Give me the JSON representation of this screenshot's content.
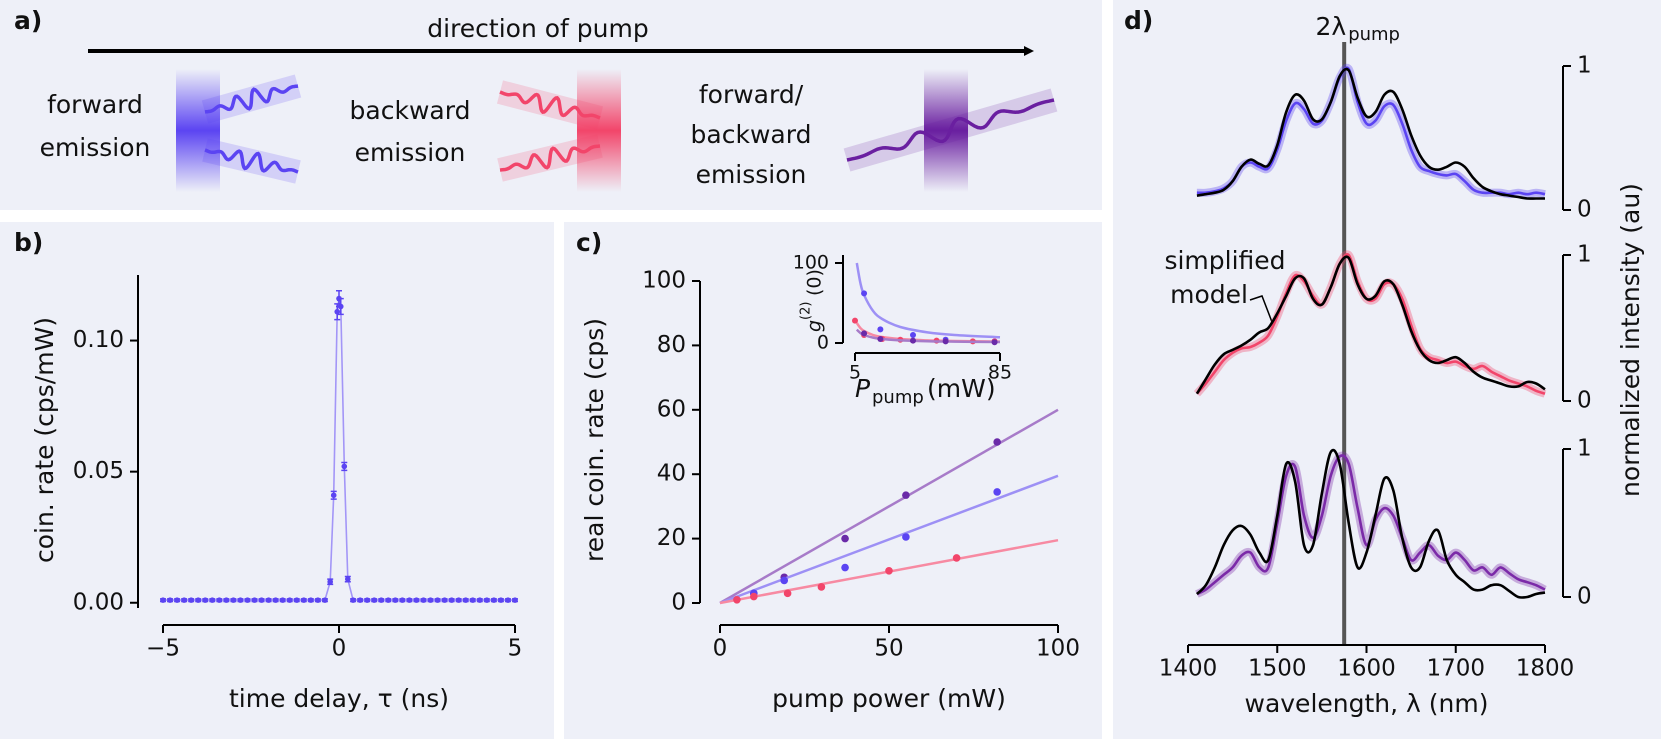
{
  "panel_a": {
    "panel": "a)",
    "arrow_label": "direction of pump",
    "emissions": [
      {
        "lines": [
          "forward",
          "emission"
        ],
        "color": "#5b44f2"
      },
      {
        "lines": [
          "backward",
          "emission"
        ],
        "color": "#f2456a"
      },
      {
        "lines": [
          "forward/",
          "backward",
          "emission"
        ],
        "color": "#6a1fa0"
      }
    ]
  },
  "chart_data": [
    {
      "panel": "b)",
      "type": "line",
      "xlabel": "time delay, τ (ns)",
      "ylabel": "coin. rate (cps/mW)",
      "x": [
        -5,
        -4.8,
        -4.6,
        -4.4,
        -4.2,
        -4,
        -3.8,
        -3.6,
        -3.4,
        -3.2,
        -3,
        -2.8,
        -2.6,
        -2.4,
        -2.2,
        -2,
        -1.8,
        -1.6,
        -1.4,
        -1.2,
        -1,
        -0.8,
        -0.6,
        -0.4,
        -0.25,
        -0.15,
        -0.05,
        0,
        0.05,
        0.15,
        0.25,
        0.4,
        0.6,
        0.8,
        1,
        1.2,
        1.4,
        1.6,
        1.8,
        2,
        2.2,
        2.4,
        2.6,
        2.8,
        3,
        3.2,
        3.4,
        3.6,
        3.8,
        4,
        4.2,
        4.4,
        4.6,
        4.8,
        5
      ],
      "series": [
        {
          "color": "#5b44f2",
          "line_color": "#a396f7",
          "values": [
            0.001,
            0.001,
            0.001,
            0.001,
            0.001,
            0.001,
            0.001,
            0.001,
            0.001,
            0.001,
            0.001,
            0.001,
            0.001,
            0.001,
            0.001,
            0.001,
            0.001,
            0.001,
            0.001,
            0.001,
            0.001,
            0.001,
            0.001,
            0.001,
            0.008,
            0.041,
            0.111,
            0.116,
            0.113,
            0.052,
            0.009,
            0.001,
            0.001,
            0.001,
            0.001,
            0.001,
            0.001,
            0.001,
            0.001,
            0.001,
            0.001,
            0.001,
            0.001,
            0.001,
            0.001,
            0.001,
            0.001,
            0.001,
            0.001,
            0.001,
            0.001,
            0.001,
            0.001,
            0.001,
            0.001
          ],
          "errors": [
            0.0005,
            0.0005,
            0.0005,
            0.0005,
            0.0005,
            0.0005,
            0.0005,
            0.0005,
            0.0005,
            0.0005,
            0.0005,
            0.0005,
            0.0005,
            0.0005,
            0.0005,
            0.0005,
            0.0005,
            0.0005,
            0.0005,
            0.0005,
            0.0005,
            0.0005,
            0.0005,
            0.0005,
            0.001,
            0.0015,
            0.003,
            0.003,
            0.003,
            0.0015,
            0.001,
            0.0005,
            0.0005,
            0.0005,
            0.0005,
            0.0005,
            0.0005,
            0.0005,
            0.0005,
            0.0005,
            0.0005,
            0.0005,
            0.0005,
            0.0005,
            0.0005,
            0.0005,
            0.0005,
            0.0005,
            0.0005,
            0.0005,
            0.0005,
            0.0005,
            0.0005,
            0.0005,
            0.0005
          ]
        }
      ],
      "xlim": [
        -5,
        5
      ],
      "ylim": [
        -0.002,
        0.125
      ],
      "xticks": [
        {
          "value": -5,
          "label": "−5"
        },
        0,
        5
      ],
      "yticks": [
        {
          "value": 0,
          "label": "0.00"
        },
        {
          "value": 0.05,
          "label": "0.05"
        },
        {
          "value": 0.1,
          "label": "0.10"
        }
      ]
    },
    {
      "panel": "c)",
      "type": "scatter",
      "xlabel": "pump power (mW)",
      "ylabel": "real coin. rate (cps)",
      "series": [
        {
          "color": "#6a2aa8",
          "line_color": "#a77bc9",
          "x": [
            10,
            19,
            37,
            55,
            82
          ],
          "values": [
            3,
            8,
            20,
            33.5,
            50
          ],
          "fit_x": [
            0,
            100
          ],
          "fit_values": [
            0,
            60
          ]
        },
        {
          "color": "#5b44f2",
          "line_color": "#9d90f5",
          "x": [
            10,
            19,
            37,
            55,
            82
          ],
          "values": [
            3,
            7,
            11,
            20.5,
            34.5
          ],
          "fit_x": [
            0,
            100
          ],
          "fit_values": [
            0,
            39.5
          ]
        },
        {
          "color": "#f2456a",
          "line_color": "#f78aa2",
          "x": [
            5,
            10,
            20,
            30,
            50,
            70
          ],
          "values": [
            1,
            2,
            3,
            5,
            10,
            14
          ],
          "fit_x": [
            0,
            100
          ],
          "fit_values": [
            0,
            19.5
          ]
        }
      ],
      "xlim": [
        0,
        100
      ],
      "ylim": [
        0,
        100
      ],
      "xticks": [
        0,
        50,
        100
      ],
      "yticks": [
        0,
        20,
        40,
        60,
        80,
        100
      ]
    },
    {
      "type": "scatter",
      "ylabel": "g",
      "ylabel_sup": "(2)",
      "ylabel_rest": "(0)",
      "xlabel": "P",
      "xlabel_sub": "pump",
      "xlabel_rest": "(mW)",
      "series": [
        {
          "color": "#5b44f2",
          "line_color": "#9d90f5",
          "x": [
            10,
            19,
            37,
            55,
            82
          ],
          "values": [
            62,
            17,
            10,
            4,
            2
          ],
          "fit_x": [
            6,
            8,
            10,
            15,
            20,
            30,
            45,
            60,
            85
          ],
          "fit_values": [
            100,
            75,
            60,
            40,
            30,
            20,
            13.3,
            10,
            7.1
          ]
        },
        {
          "color": "#f2456a",
          "line_color": "#f78aa2",
          "x": [
            5,
            10,
            20,
            30,
            50,
            70,
            82
          ],
          "values": [
            28,
            10,
            5,
            4,
            3,
            2,
            2
          ],
          "fit_x": [
            6,
            8,
            10,
            15,
            20,
            30,
            45,
            60,
            85
          ],
          "fit_values": [
            25,
            18.8,
            15,
            10,
            7.5,
            5,
            3.3,
            2.5,
            1.8
          ]
        },
        {
          "color": "#6a2aa8",
          "line_color": "#a77bc9",
          "x": [
            10,
            19,
            37,
            55,
            82
          ],
          "values": [
            12,
            5,
            3,
            2,
            1
          ],
          "fit_x": [
            6,
            8,
            10,
            15,
            20,
            30,
            45,
            60,
            85
          ],
          "fit_values": [
            16.7,
            12.5,
            10,
            6.7,
            5,
            3.3,
            2.2,
            1.7,
            1.2
          ]
        }
      ],
      "xlim": [
        5,
        85
      ],
      "ylim": [
        0,
        110
      ],
      "xticks": [
        5,
        85
      ],
      "yticks": [
        0,
        100
      ]
    },
    {
      "panel": "d)",
      "type": "line",
      "vline": {
        "value": 1575,
        "label": "2λ",
        "label_sub": "pump"
      },
      "x": [
        1410,
        1420,
        1430,
        1440,
        1450,
        1460,
        1470,
        1480,
        1490,
        1500,
        1510,
        1520,
        1530,
        1540,
        1550,
        1560,
        1570,
        1580,
        1590,
        1600,
        1610,
        1620,
        1630,
        1640,
        1650,
        1660,
        1670,
        1680,
        1690,
        1700,
        1710,
        1720,
        1730,
        1740,
        1750,
        1760,
        1770,
        1780,
        1790,
        1800
      ],
      "series": [
        {
          "color": "#5b44f2",
          "values": [
            0.12,
            0.12,
            0.13,
            0.15,
            0.2,
            0.3,
            0.33,
            0.3,
            0.29,
            0.42,
            0.62,
            0.74,
            0.7,
            0.6,
            0.62,
            0.75,
            0.92,
            0.98,
            0.75,
            0.6,
            0.62,
            0.72,
            0.73,
            0.6,
            0.42,
            0.3,
            0.27,
            0.25,
            0.24,
            0.25,
            0.2,
            0.14,
            0.12,
            0.12,
            0.12,
            0.11,
            0.12,
            0.11,
            0.12,
            0.11
          ]
        },
        {
          "color": "#000000",
          "values": [
            0.1,
            0.11,
            0.12,
            0.14,
            0.2,
            0.3,
            0.35,
            0.32,
            0.31,
            0.45,
            0.68,
            0.8,
            0.76,
            0.63,
            0.63,
            0.75,
            0.93,
            0.97,
            0.78,
            0.65,
            0.68,
            0.8,
            0.82,
            0.7,
            0.52,
            0.38,
            0.3,
            0.28,
            0.3,
            0.33,
            0.3,
            0.22,
            0.16,
            0.13,
            0.11,
            0.1,
            0.09,
            0.08,
            0.08,
            0.08
          ]
        }
      ],
      "xlim": [
        1400,
        1800
      ],
      "ylim": [
        0,
        1
      ],
      "yticks": [
        0,
        1
      ]
    },
    {
      "type": "line",
      "ylabel": "normalized intensity (au)",
      "annotation": [
        "simplified",
        "model"
      ],
      "x": [
        1410,
        1420,
        1430,
        1440,
        1450,
        1460,
        1470,
        1480,
        1490,
        1500,
        1510,
        1520,
        1530,
        1540,
        1550,
        1560,
        1570,
        1580,
        1590,
        1600,
        1610,
        1620,
        1630,
        1640,
        1650,
        1660,
        1670,
        1680,
        1690,
        1700,
        1710,
        1720,
        1730,
        1740,
        1750,
        1760,
        1770,
        1780,
        1790,
        1800
      ],
      "series": [
        {
          "color": "#f2456a",
          "values": [
            0.05,
            0.12,
            0.2,
            0.28,
            0.33,
            0.36,
            0.37,
            0.4,
            0.45,
            0.58,
            0.74,
            0.86,
            0.82,
            0.72,
            0.66,
            0.78,
            0.94,
            1.0,
            0.82,
            0.7,
            0.7,
            0.8,
            0.8,
            0.7,
            0.52,
            0.36,
            0.3,
            0.28,
            0.26,
            0.27,
            0.24,
            0.22,
            0.24,
            0.2,
            0.17,
            0.14,
            0.12,
            0.1,
            0.07,
            0.05
          ]
        },
        {
          "color": "#000000",
          "values": [
            0.05,
            0.15,
            0.25,
            0.32,
            0.35,
            0.38,
            0.42,
            0.47,
            0.5,
            0.6,
            0.72,
            0.84,
            0.84,
            0.7,
            0.66,
            0.78,
            0.94,
            0.98,
            0.8,
            0.7,
            0.72,
            0.82,
            0.8,
            0.66,
            0.48,
            0.35,
            0.28,
            0.26,
            0.28,
            0.3,
            0.26,
            0.2,
            0.16,
            0.14,
            0.12,
            0.1,
            0.1,
            0.13,
            0.12,
            0.08
          ]
        }
      ],
      "xlim": [
        1400,
        1800
      ],
      "ylim": [
        0,
        1
      ],
      "yticks": [
        0,
        1
      ]
    },
    {
      "type": "line",
      "xlabel": "wavelength, λ (nm)",
      "x": [
        1410,
        1420,
        1430,
        1440,
        1450,
        1460,
        1470,
        1480,
        1490,
        1500,
        1510,
        1520,
        1530,
        1540,
        1550,
        1560,
        1570,
        1580,
        1590,
        1600,
        1610,
        1620,
        1630,
        1640,
        1650,
        1660,
        1670,
        1680,
        1690,
        1700,
        1710,
        1720,
        1730,
        1740,
        1750,
        1760,
        1770,
        1780,
        1790,
        1800
      ],
      "series": [
        {
          "color": "#7b2aa8",
          "values": [
            0.02,
            0.05,
            0.1,
            0.15,
            0.2,
            0.28,
            0.3,
            0.2,
            0.2,
            0.5,
            0.82,
            0.88,
            0.55,
            0.4,
            0.55,
            0.82,
            0.95,
            0.9,
            0.6,
            0.35,
            0.52,
            0.6,
            0.55,
            0.4,
            0.25,
            0.3,
            0.35,
            0.28,
            0.25,
            0.3,
            0.25,
            0.18,
            0.2,
            0.15,
            0.2,
            0.16,
            0.12,
            0.1,
            0.08,
            0.05
          ]
        },
        {
          "color": "#000000",
          "values": [
            0.02,
            0.08,
            0.2,
            0.35,
            0.45,
            0.48,
            0.42,
            0.3,
            0.25,
            0.55,
            0.9,
            0.78,
            0.35,
            0.35,
            0.7,
            0.98,
            0.9,
            0.5,
            0.2,
            0.3,
            0.55,
            0.8,
            0.72,
            0.4,
            0.2,
            0.2,
            0.38,
            0.45,
            0.25,
            0.15,
            0.1,
            0.05,
            0.05,
            0.08,
            0.08,
            0.04,
            0.0,
            0.0,
            0.02,
            0.03
          ]
        }
      ],
      "xlim": [
        1400,
        1800
      ],
      "ylim": [
        0,
        1
      ],
      "xticks": [
        1400,
        1500,
        1600,
        1700,
        1800
      ],
      "yticks": [
        0,
        1
      ]
    }
  ]
}
